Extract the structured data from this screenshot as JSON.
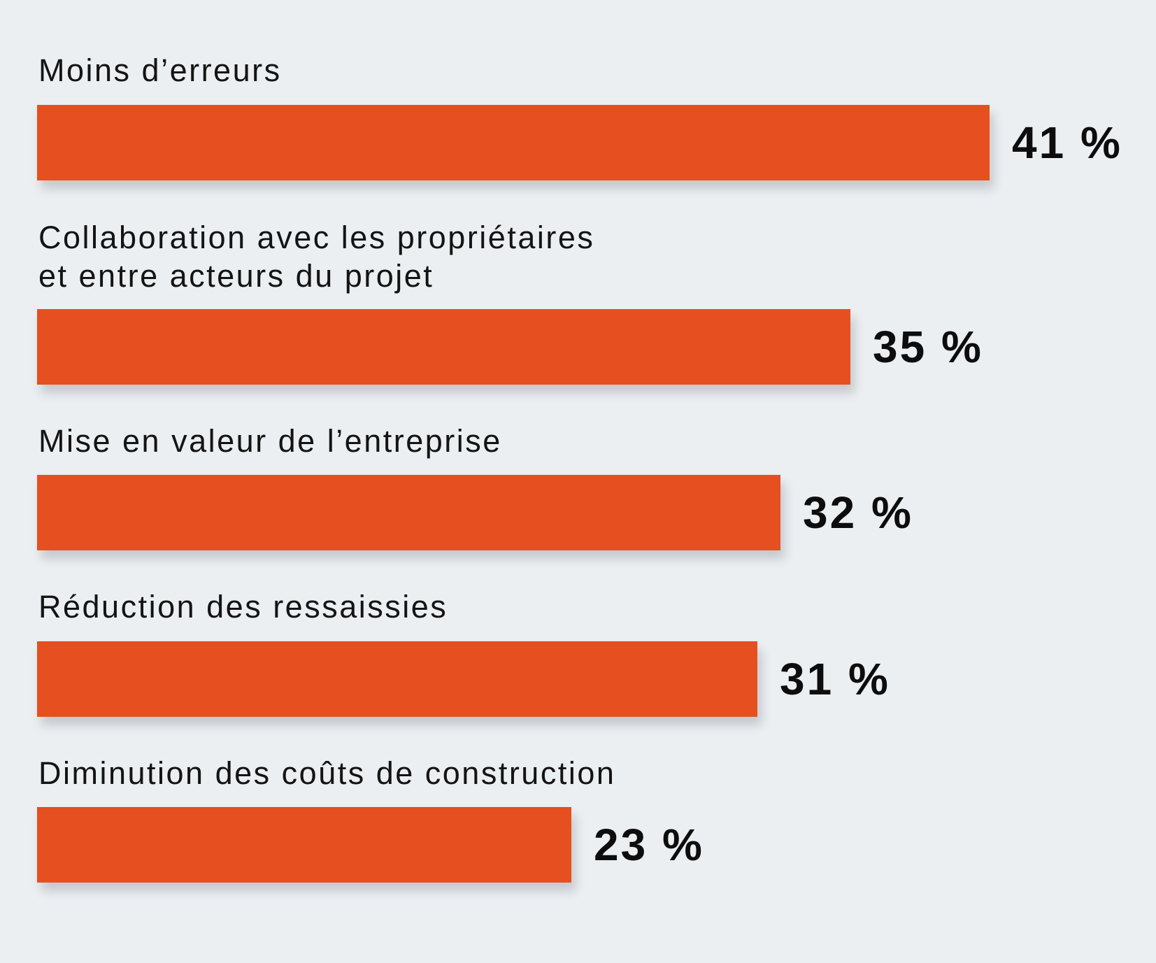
{
  "chart_data": {
    "type": "bar",
    "orientation": "horizontal",
    "categories": [
      "Moins d’erreurs",
      "Collaboration avec les propriétaires\net entre acteurs du projet",
      "Mise en valeur de l’entreprise",
      "Réduction des ressaissies",
      "Diminution des coûts de construction"
    ],
    "values": [
      41,
      35,
      32,
      31,
      23
    ],
    "value_labels": [
      "41 %",
      "35 %",
      "32 %",
      "31 %",
      "23 %"
    ],
    "unit": "%",
    "title": "",
    "xlabel": "",
    "ylabel": "",
    "xlim": [
      0,
      41
    ],
    "grid": false,
    "legend": "none",
    "colors": {
      "bar": "#e64f20",
      "background": "#ebeff2",
      "label_text": "#141414",
      "value_text": "#0d0d0d"
    }
  }
}
